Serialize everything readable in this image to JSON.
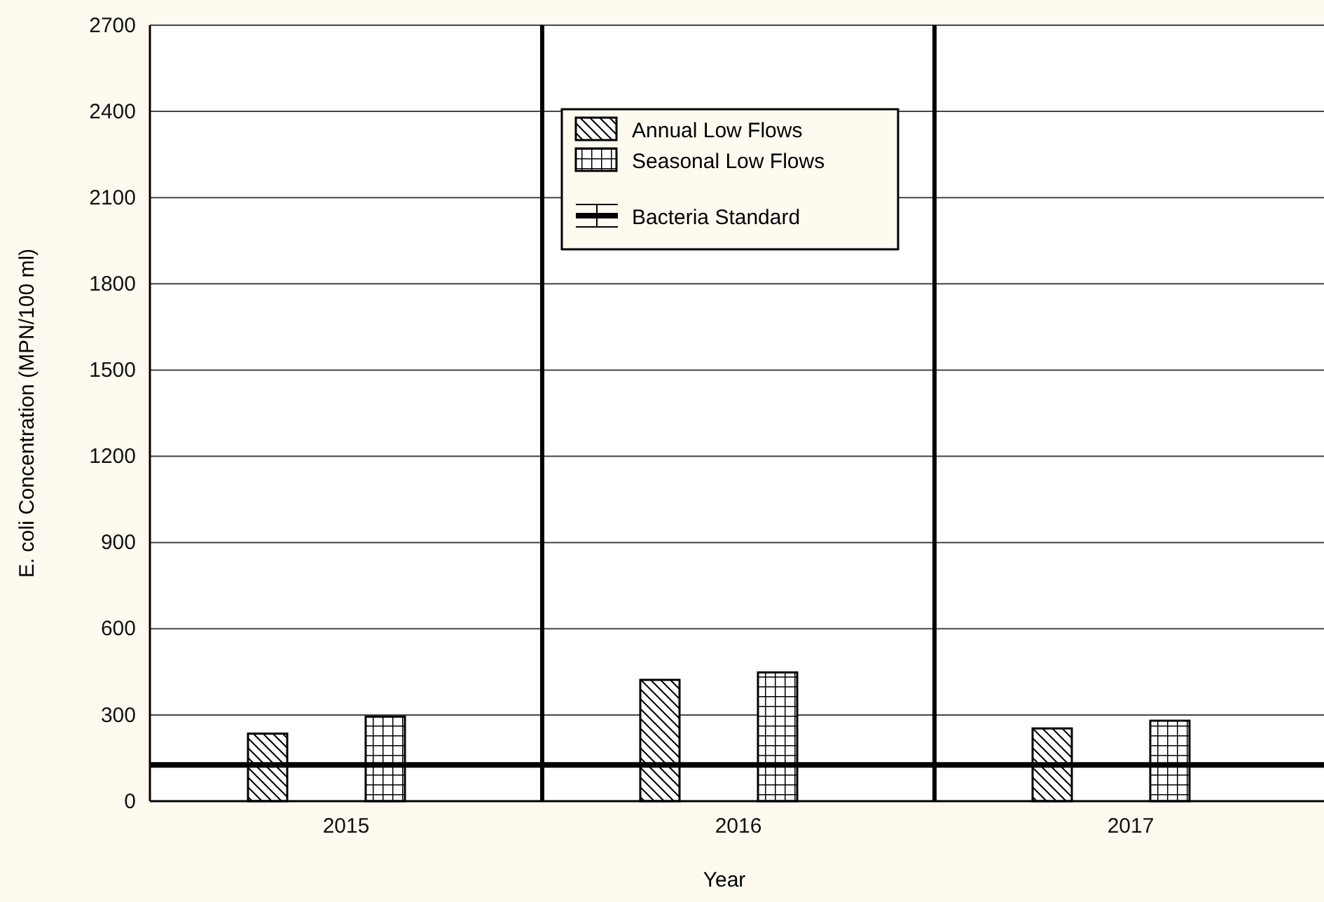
{
  "chart_data": {
    "type": "bar",
    "xlabel": "Year",
    "ylabel": "E. coli Concentration (MPN/100 ml)",
    "categories": [
      "2015",
      "2016",
      "2017"
    ],
    "series": [
      {
        "name": "Annual Low Flows",
        "color": "#000000",
        "values": [
          235,
          422,
          253
        ]
      },
      {
        "name": "Seasonal Low Flows",
        "color": "#000000",
        "values": [
          294,
          448,
          280
        ]
      }
    ],
    "ylim": [
      0,
      2700
    ],
    "yticks": [
      0,
      300,
      600,
      900,
      1200,
      1500,
      1800,
      2100,
      2400,
      2700
    ],
    "grid": "y",
    "legend": "top",
    "ref_lines": [
      {
        "axis": "y",
        "value": 126,
        "label": "Bacteria Standard",
        "color": "#000000"
      }
    ]
  }
}
